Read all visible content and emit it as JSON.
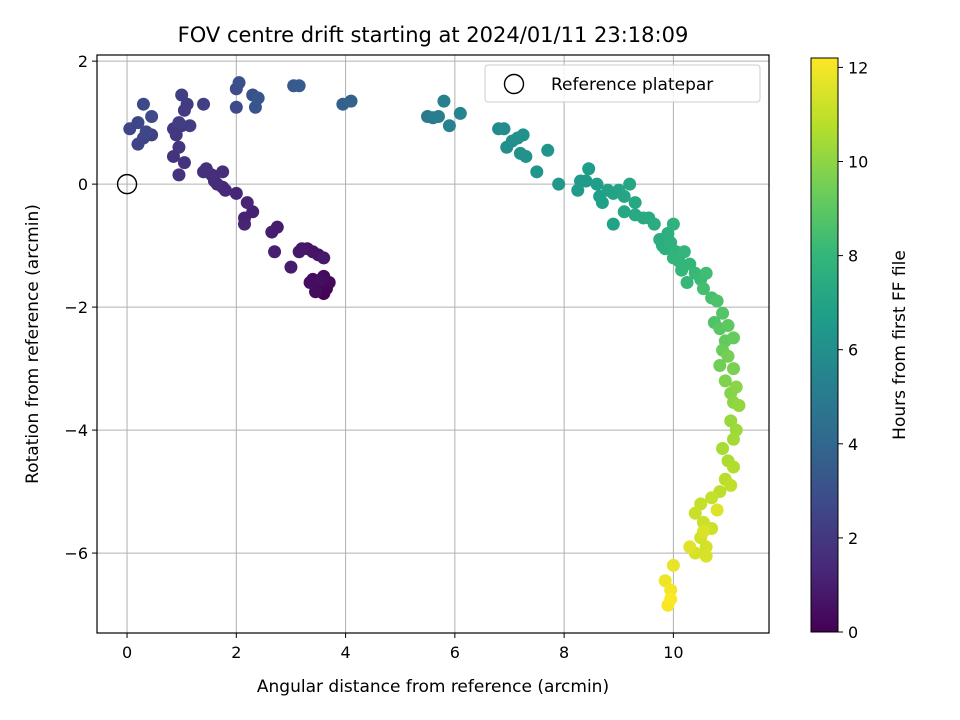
{
  "chart_data": {
    "type": "scatter",
    "title": "FOV centre drift starting at 2024/01/11 23:18:09",
    "xlabel": "Angular distance from reference (arcmin)",
    "ylabel": "Rotation from reference (arcmin)",
    "xlim": [
      -0.55,
      11.75
    ],
    "ylim": [
      -7.3,
      2.1
    ],
    "xticks": [
      0,
      2,
      4,
      6,
      8,
      10
    ],
    "yticks": [
      2,
      0,
      -2,
      -4,
      -6
    ],
    "grid": true,
    "legend": {
      "placement": "top-right",
      "entries": [
        "Reference platepar"
      ]
    },
    "reference_point": {
      "x": 0,
      "y": 0,
      "label": "Reference platepar"
    },
    "colorbar": {
      "label": "Hours from first FF file",
      "range": [
        0,
        12.2
      ],
      "ticks": [
        0,
        2,
        4,
        6,
        8,
        10,
        12
      ],
      "colormap": "viridis",
      "stops": [
        "#440154",
        "#482878",
        "#3e4989",
        "#31688e",
        "#26828e",
        "#1f9e89",
        "#35b779",
        "#6ece58",
        "#b5de2b",
        "#fde725"
      ]
    },
    "series": [
      {
        "points": [
          [
            3.6,
            -1.78,
            0.05
          ],
          [
            3.55,
            -1.72,
            0.1
          ],
          [
            3.65,
            -1.7,
            0.15
          ],
          [
            3.5,
            -1.65,
            0.2
          ],
          [
            3.7,
            -1.6,
            0.25
          ],
          [
            3.4,
            -1.55,
            0.3
          ],
          [
            3.6,
            -1.5,
            0.35
          ],
          [
            3.45,
            -1.75,
            0.4
          ],
          [
            3.35,
            -1.6,
            0.45
          ],
          [
            3.55,
            -1.55,
            0.5
          ],
          [
            3.5,
            -1.15,
            0.6
          ],
          [
            3.4,
            -1.1,
            0.65
          ],
          [
            3.3,
            -1.05,
            0.7
          ],
          [
            3.2,
            -1.05,
            0.75
          ],
          [
            3.15,
            -1.1,
            0.8
          ],
          [
            3.6,
            -1.2,
            0.85
          ],
          [
            3.0,
            -1.35,
            0.9
          ],
          [
            2.75,
            -0.7,
            0.95
          ],
          [
            2.65,
            -0.78,
            1.0
          ],
          [
            2.7,
            -1.1,
            1.05
          ],
          [
            2.3,
            -0.45,
            1.1
          ],
          [
            2.15,
            -0.55,
            1.15
          ],
          [
            2.15,
            -0.65,
            1.2
          ],
          [
            2.2,
            -0.3,
            1.25
          ],
          [
            2.0,
            -0.15,
            1.3
          ],
          [
            1.75,
            -0.05,
            1.35
          ],
          [
            1.8,
            -0.1,
            1.4
          ],
          [
            1.65,
            0.0,
            1.45
          ],
          [
            1.6,
            0.05,
            1.5
          ],
          [
            1.75,
            0.2,
            1.55
          ],
          [
            1.55,
            0.15,
            1.6
          ],
          [
            1.4,
            0.2,
            1.65
          ],
          [
            1.45,
            0.25,
            1.7
          ],
          [
            0.95,
            0.15,
            1.75
          ],
          [
            1.05,
            0.35,
            1.8
          ],
          [
            0.85,
            0.45,
            1.85
          ],
          [
            0.95,
            0.6,
            1.9
          ],
          [
            0.9,
            0.8,
            1.95
          ],
          [
            1.0,
            0.95,
            2.0
          ],
          [
            0.85,
            0.9,
            2.05
          ],
          [
            1.1,
            1.3,
            2.1
          ],
          [
            1.05,
            1.2,
            2.15
          ],
          [
            1.15,
            0.95,
            2.2
          ],
          [
            0.95,
            1.0,
            2.25
          ],
          [
            1.0,
            1.45,
            2.3
          ],
          [
            1.4,
            1.3,
            2.35
          ],
          [
            0.45,
            0.8,
            2.4
          ],
          [
            0.3,
            0.75,
            2.45
          ],
          [
            0.2,
            0.65,
            2.5
          ],
          [
            0.05,
            0.9,
            2.55
          ],
          [
            0.2,
            1.0,
            2.6
          ],
          [
            0.35,
            0.85,
            2.65
          ],
          [
            0.3,
            1.3,
            2.7
          ],
          [
            0.45,
            1.1,
            2.75
          ],
          [
            2.0,
            1.25,
            2.8
          ],
          [
            2.0,
            1.55,
            2.9
          ],
          [
            2.05,
            1.65,
            3.0
          ],
          [
            2.3,
            1.45,
            3.1
          ],
          [
            2.35,
            1.25,
            3.2
          ],
          [
            2.4,
            1.4,
            3.3
          ],
          [
            3.05,
            1.6,
            3.4
          ],
          [
            3.15,
            1.6,
            3.5
          ],
          [
            3.95,
            1.3,
            3.7
          ],
          [
            4.1,
            1.35,
            3.8
          ],
          [
            5.5,
            1.1,
            5.0
          ],
          [
            5.6,
            1.08,
            5.1
          ],
          [
            5.7,
            1.1,
            5.2
          ],
          [
            5.8,
            1.35,
            5.3
          ],
          [
            5.9,
            0.95,
            5.4
          ],
          [
            6.1,
            1.15,
            5.5
          ],
          [
            6.8,
            0.9,
            5.8
          ],
          [
            6.9,
            0.9,
            5.9
          ],
          [
            6.95,
            0.6,
            6.0
          ],
          [
            7.05,
            0.7,
            6.05
          ],
          [
            7.15,
            0.75,
            6.1
          ],
          [
            7.25,
            0.8,
            6.15
          ],
          [
            7.3,
            0.45,
            6.2
          ],
          [
            7.2,
            0.5,
            6.25
          ],
          [
            7.5,
            0.2,
            6.3
          ],
          [
            7.7,
            0.55,
            6.35
          ],
          [
            7.9,
            0.0,
            6.5
          ],
          [
            8.25,
            -0.1,
            6.6
          ],
          [
            8.3,
            0.05,
            6.65
          ],
          [
            8.4,
            0.05,
            6.7
          ],
          [
            8.45,
            0.25,
            6.75
          ],
          [
            8.6,
            0.0,
            6.8
          ],
          [
            8.65,
            -0.2,
            6.85
          ],
          [
            8.7,
            -0.3,
            6.9
          ],
          [
            8.8,
            -0.1,
            6.95
          ],
          [
            8.9,
            -0.15,
            7.0
          ],
          [
            8.9,
            -0.65,
            7.05
          ],
          [
            9.0,
            -0.1,
            7.1
          ],
          [
            9.1,
            -0.2,
            7.15
          ],
          [
            9.2,
            0.0,
            7.2
          ],
          [
            9.1,
            -0.45,
            7.25
          ],
          [
            9.3,
            -0.3,
            7.3
          ],
          [
            9.3,
            -0.5,
            7.35
          ],
          [
            9.45,
            -0.55,
            7.4
          ],
          [
            9.55,
            -0.55,
            7.45
          ],
          [
            9.65,
            -0.65,
            7.5
          ],
          [
            9.75,
            -0.9,
            7.55
          ],
          [
            9.8,
            -1.0,
            7.6
          ],
          [
            9.85,
            -1.05,
            7.65
          ],
          [
            9.9,
            -0.8,
            7.7
          ],
          [
            9.95,
            -0.95,
            7.75
          ],
          [
            10.0,
            -0.65,
            7.8
          ],
          [
            10.05,
            -1.1,
            7.85
          ],
          [
            10.0,
            -1.2,
            7.9
          ],
          [
            10.1,
            -1.25,
            7.95
          ],
          [
            10.2,
            -1.1,
            8.0
          ],
          [
            10.15,
            -1.4,
            8.05
          ],
          [
            10.3,
            -1.3,
            8.1
          ],
          [
            10.25,
            -1.6,
            8.15
          ],
          [
            10.4,
            -1.45,
            8.2
          ],
          [
            10.5,
            -1.55,
            8.3
          ],
          [
            10.6,
            -1.45,
            8.4
          ],
          [
            10.55,
            -1.7,
            8.5
          ],
          [
            10.7,
            -1.85,
            8.6
          ],
          [
            10.8,
            -1.9,
            8.7
          ],
          [
            10.75,
            -2.25,
            8.8
          ],
          [
            10.9,
            -2.1,
            8.9
          ],
          [
            10.85,
            -2.35,
            9.0
          ],
          [
            11.0,
            -2.3,
            9.1
          ],
          [
            10.95,
            -2.55,
            9.2
          ],
          [
            11.1,
            -2.5,
            9.3
          ],
          [
            10.9,
            -2.7,
            9.4
          ],
          [
            10.85,
            -2.95,
            9.5
          ],
          [
            11.0,
            -2.8,
            9.6
          ],
          [
            11.1,
            -3.0,
            9.7
          ],
          [
            10.95,
            -3.2,
            9.8
          ],
          [
            11.05,
            -3.4,
            9.9
          ],
          [
            11.15,
            -3.3,
            10.0
          ],
          [
            11.1,
            -3.55,
            10.1
          ],
          [
            11.2,
            -3.6,
            10.2
          ],
          [
            11.05,
            -3.85,
            10.3
          ],
          [
            11.15,
            -4.0,
            10.4
          ],
          [
            11.1,
            -4.15,
            10.5
          ],
          [
            10.9,
            -4.3,
            10.6
          ],
          [
            11.0,
            -4.5,
            10.7
          ],
          [
            11.1,
            -4.6,
            10.8
          ],
          [
            10.95,
            -4.8,
            10.9
          ],
          [
            10.85,
            -5.0,
            11.0
          ],
          [
            11.05,
            -4.9,
            11.05
          ],
          [
            10.7,
            -5.1,
            11.1
          ],
          [
            10.5,
            -5.2,
            11.15
          ],
          [
            10.4,
            -5.35,
            11.2
          ],
          [
            10.55,
            -5.5,
            11.25
          ],
          [
            10.7,
            -5.6,
            11.3
          ],
          [
            10.5,
            -5.75,
            11.35
          ],
          [
            10.6,
            -5.9,
            11.4
          ],
          [
            10.4,
            -6.0,
            11.45
          ],
          [
            10.6,
            -6.05,
            11.5
          ],
          [
            10.55,
            -5.65,
            11.55
          ],
          [
            10.8,
            -5.3,
            11.6
          ],
          [
            10.3,
            -5.9,
            11.65
          ],
          [
            10.0,
            -6.2,
            11.8
          ],
          [
            9.85,
            -6.45,
            11.9
          ],
          [
            9.95,
            -6.6,
            12.0
          ],
          [
            9.9,
            -6.85,
            12.1
          ],
          [
            9.95,
            -6.75,
            12.15
          ]
        ]
      }
    ]
  }
}
